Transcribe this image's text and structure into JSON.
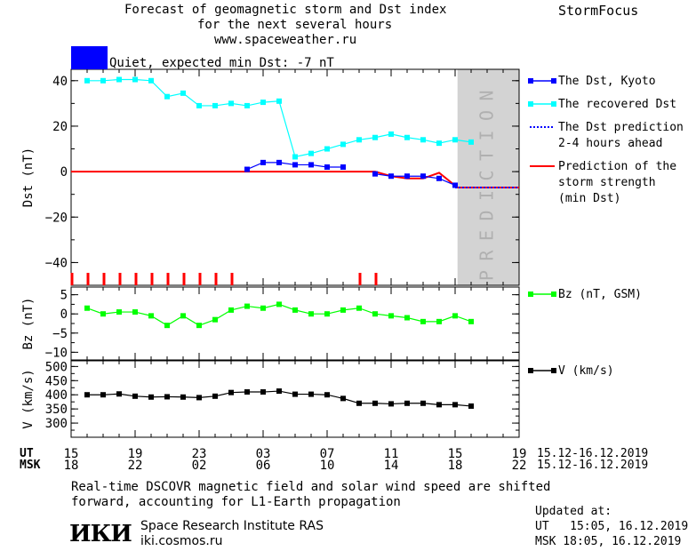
{
  "header": {
    "title_line1": "Forecast of geomagnetic storm and Dst index",
    "title_line2": "for the next several hours",
    "url": "www.spaceweather.ru",
    "brand": "StormFocus"
  },
  "status": {
    "text": "Quiet, expected min Dst: -7 nT",
    "color": "#0000ff"
  },
  "prediction_label": "PREDICTION",
  "time_axis": {
    "ut_label": "UT",
    "msk_label": "MSK",
    "ut_ticks": [
      "15",
      "19",
      "23",
      "03",
      "07",
      "11",
      "15",
      "19"
    ],
    "msk_ticks": [
      "18",
      "22",
      "02",
      "06",
      "10",
      "14",
      "18",
      "22"
    ],
    "ut_range": "15.12-16.12.2019",
    "msk_range": "15.12-16.12.2019"
  },
  "footer": {
    "note_line1": "Real-time DSCOVR magnetic field and solar wind speed are shifted",
    "note_line2": "forward, accounting for L1-Earth propagation",
    "logo": "ИКИ",
    "institute": "Space Research Institute RAS",
    "site": "iki.cosmos.ru",
    "updated_label": "Updated at:",
    "updated_ut": "UT   15:05, 16.12.2019",
    "updated_msk": "MSK 18:05, 16.12.2019"
  },
  "chart_data": [
    {
      "type": "line",
      "ylabel": "Dst (nT)",
      "xlim": [
        0,
        28
      ],
      "ylim": [
        -50,
        45
      ],
      "yticks": [
        40,
        20,
        0,
        -20,
        -40
      ],
      "prediction_x": [
        24.15,
        28
      ],
      "series": [
        {
          "name": "The Dst, Kyoto",
          "color": "#0000ff",
          "marker": "square",
          "x": [
            11,
            12,
            13,
            14,
            15,
            16,
            17
          ],
          "y": [
            1,
            4,
            4,
            3,
            3,
            2,
            2
          ]
        },
        {
          "name": "The Dst, Kyoto",
          "color": "#0000ff",
          "marker": "square",
          "x": [
            19,
            20,
            21,
            22,
            23,
            24
          ],
          "y": [
            -1,
            -2,
            -2,
            -2,
            -3,
            -6
          ]
        },
        {
          "name": "The recovered Dst",
          "color": "#00ffff",
          "marker": "square",
          "x": [
            1,
            2,
            3,
            4,
            5,
            6,
            7,
            8,
            9,
            10,
            11,
            12,
            13,
            14,
            15,
            16,
            17,
            18,
            19,
            20,
            21,
            22,
            23,
            24,
            25
          ],
          "y": [
            40,
            40,
            40.5,
            40.5,
            40,
            33,
            34.5,
            29,
            29,
            30,
            29,
            30.5,
            31,
            6.5,
            8,
            10,
            12,
            14,
            15,
            16.5,
            15,
            14,
            12.5,
            14,
            13
          ]
        },
        {
          "name": "The Dst prediction 2-4 hours ahead",
          "color": "#0000ff",
          "dashed": true,
          "x": [
            24,
            28
          ],
          "y": [
            -7,
            -7
          ]
        },
        {
          "name": "Prediction of the storm strength (min Dst)",
          "color": "#ff0000",
          "x": [
            0,
            19,
            20,
            21,
            22,
            23,
            24.15,
            28
          ],
          "y": [
            0,
            0,
            -2,
            -3,
            -3,
            -0.5,
            -7,
            -7
          ]
        }
      ],
      "legend": [
        {
          "lines": [
            "The Dst, Kyoto"
          ],
          "color": "#0000ff",
          "style": "marker"
        },
        {
          "lines": [
            "The recovered Dst"
          ],
          "color": "#00ffff",
          "style": "marker"
        },
        {
          "lines": [
            "The Dst prediction",
            "2-4 hours ahead"
          ],
          "color": "#0000ff",
          "style": "dotted"
        },
        {
          "lines": [
            "Prediction of the",
            "storm strength",
            "(min Dst)"
          ],
          "color": "#ff0000",
          "style": "line"
        }
      ],
      "red_markers_x": [
        0,
        1,
        2,
        3,
        4,
        5,
        6,
        7,
        8,
        9,
        10,
        18,
        19
      ]
    },
    {
      "type": "line",
      "ylabel": "Bz (nT)",
      "ylim": [
        -12,
        7
      ],
      "yticks": [
        5,
        0,
        -5,
        -10
      ],
      "legend": "Bz (nT, GSM)",
      "color": "#00ff00",
      "x": [
        1,
        2,
        3,
        4,
        5,
        6,
        7,
        8,
        9,
        10,
        11,
        12,
        13,
        14,
        15,
        16,
        17,
        18,
        19,
        20,
        21,
        22,
        23,
        24,
        25
      ],
      "y": [
        1.5,
        0,
        0.5,
        0.5,
        -0.5,
        -3,
        -0.5,
        -3,
        -1.5,
        1,
        2,
        1.5,
        2.5,
        1,
        0,
        0,
        1,
        1.5,
        0,
        -0.5,
        -1,
        -2,
        -2,
        -0.5,
        -2
      ]
    },
    {
      "type": "line",
      "ylabel": "V (km/s)",
      "ylim": [
        250,
        520
      ],
      "yticks": [
        500,
        450,
        400,
        350,
        300
      ],
      "legend": "V (km/s)",
      "color": "#000000",
      "x": [
        1,
        2,
        3,
        4,
        5,
        6,
        7,
        8,
        9,
        10,
        11,
        12,
        13,
        14,
        15,
        16,
        17,
        18,
        19,
        20,
        21,
        22,
        23,
        24,
        25
      ],
      "y": [
        400,
        400,
        403,
        395,
        392,
        393,
        392,
        390,
        395,
        408,
        410,
        410,
        413,
        402,
        402,
        400,
        387,
        370,
        370,
        368,
        370,
        370,
        365,
        365,
        360
      ]
    }
  ]
}
